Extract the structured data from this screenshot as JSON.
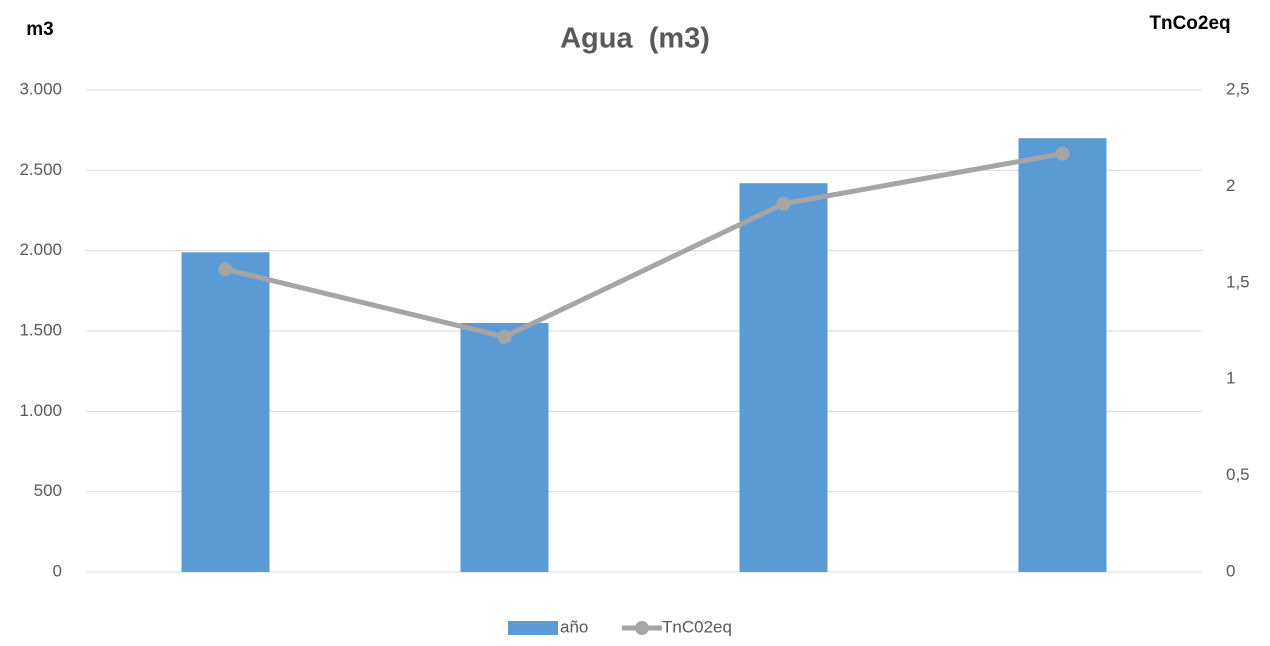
{
  "chart_data": {
    "type": "bar_line",
    "title": "Agua  (m3)",
    "y_label": "m3",
    "y2_label": "TnCo2eq",
    "categories": [
      null,
      null,
      null,
      null
    ],
    "series": [
      {
        "name": "año",
        "color": "#5b9bd5",
        "type": "bar",
        "values": [
          1990,
          1550,
          2420,
          2700
        ]
      },
      {
        "name": "TnC02eq",
        "color": "#a5a5a5",
        "type": "line",
        "axis": "y2",
        "values": [
          1.57,
          1.22,
          1.91,
          2.17
        ]
      }
    ],
    "ylim": [
      0,
      3000
    ],
    "yticks": [
      0,
      500,
      {
        "value": 1000,
        "label": "1.000"
      },
      {
        "value": 1500,
        "label": "1.500"
      },
      {
        "value": 2000,
        "label": "2.000"
      },
      {
        "value": 2500,
        "label": "2.500"
      },
      {
        "value": 3000,
        "label": "3.000"
      }
    ],
    "y2lim": [
      0,
      2.5
    ],
    "y2ticks": [
      0,
      {
        "value": 0.5,
        "label": "0,5"
      },
      1,
      {
        "value": 1.5,
        "label": "1,5"
      },
      2,
      {
        "value": 2.5,
        "label": "2,5"
      }
    ],
    "grid": true,
    "legend": "bottom"
  }
}
